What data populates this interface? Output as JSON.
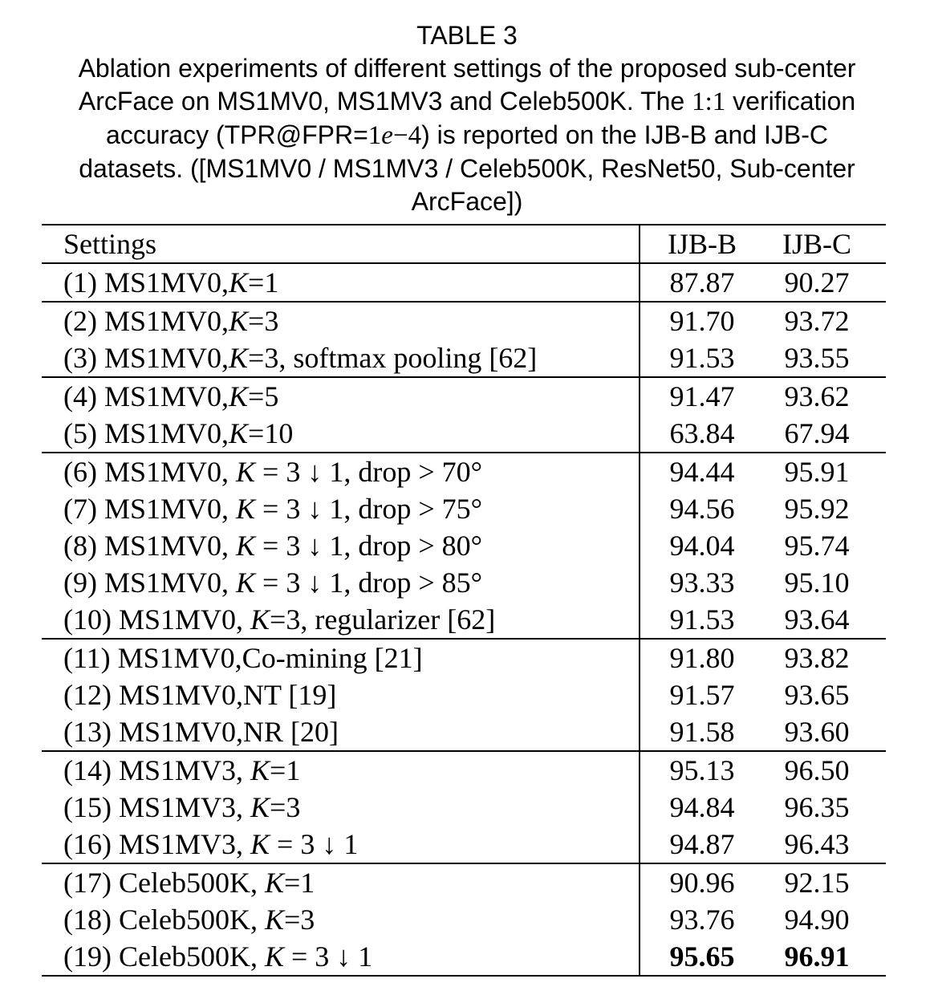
{
  "caption": {
    "title": "TABLE 3",
    "line1": "Ablation experiments of different settings of the proposed sub-center",
    "line2_pre": "ArcFace on MS1MV0, MS1MV3 and Celeb500K. The ",
    "line2_math": "1:1",
    "line2_post": " verification",
    "line3_pre": "accuracy (TPR@FPR=",
    "line3_math_a": "1",
    "line3_math_e": "e",
    "line3_math_b": "−4",
    "line3_post": ") is reported on the IJB-B and IJB-C",
    "line4": "datasets. ([MS1MV0 / MS1MV3 / Celeb500K, ResNet50, Sub-center",
    "line5": "ArcFace])"
  },
  "table": {
    "headers": [
      "Settings",
      "IJB-B",
      "IJB-C"
    ],
    "rows": [
      {
        "p1": "(1) MS1MV0,",
        "k": "K",
        "p2": "=1",
        "ijbb": "87.87",
        "ijbc": "90.27"
      },
      {
        "p1": "(2) MS1MV0,",
        "k": "K",
        "p2": "=3",
        "ijbb": "91.70",
        "ijbc": "93.72"
      },
      {
        "p1": "(3) MS1MV0,",
        "k": "K",
        "p2": "=3, softmax pooling [62]",
        "ijbb": "91.53",
        "ijbc": "93.55"
      },
      {
        "p1": "(4) MS1MV0,",
        "k": "K",
        "p2": "=5",
        "ijbb": "91.47",
        "ijbc": "93.62"
      },
      {
        "p1": "(5) MS1MV0,",
        "k": "K",
        "p2": "=10",
        "ijbb": "63.84",
        "ijbc": "67.94"
      },
      {
        "p1": "(6) MS1MV0, ",
        "k": "K",
        "p2": " = 3 ↓ 1, drop > 70°",
        "ijbb": "94.44",
        "ijbc": "95.91"
      },
      {
        "p1": "(7) MS1MV0, ",
        "k": "K",
        "p2": " = 3 ↓ 1, drop > 75°",
        "ijbb": "94.56",
        "ijbc": "95.92"
      },
      {
        "p1": "(8) MS1MV0, ",
        "k": "K",
        "p2": " = 3 ↓ 1, drop > 80°",
        "ijbb": "94.04",
        "ijbc": "95.74"
      },
      {
        "p1": "(9) MS1MV0, ",
        "k": "K",
        "p2": " = 3 ↓ 1, drop > 85°",
        "ijbb": "93.33",
        "ijbc": "95.10"
      },
      {
        "p1": "(10) MS1MV0, ",
        "k": "K",
        "p2": "=3, regularizer [62]",
        "ijbb": "91.53",
        "ijbc": "93.64"
      },
      {
        "p1": "(11) MS1MV0,Co-mining [21]",
        "k": "",
        "p2": "",
        "ijbb": "91.80",
        "ijbc": "93.82"
      },
      {
        "p1": "(12) MS1MV0,NT [19]",
        "k": "",
        "p2": "",
        "ijbb": "91.57",
        "ijbc": "93.65"
      },
      {
        "p1": "(13) MS1MV0,NR [20]",
        "k": "",
        "p2": "",
        "ijbb": "91.58",
        "ijbc": "93.60"
      },
      {
        "p1": "(14) MS1MV3, ",
        "k": "K",
        "p2": "=1",
        "ijbb": "95.13",
        "ijbc": "96.50"
      },
      {
        "p1": "(15) MS1MV3, ",
        "k": "K",
        "p2": "=3",
        "ijbb": "94.84",
        "ijbc": "96.35"
      },
      {
        "p1": "(16) MS1MV3, ",
        "k": "K",
        "p2": " = 3 ↓ 1",
        "ijbb": "94.87",
        "ijbc": "96.43"
      },
      {
        "p1": "(17) Celeb500K, ",
        "k": "K",
        "p2": "=1",
        "ijbb": "90.96",
        "ijbc": "92.15"
      },
      {
        "p1": "(18) Celeb500K, ",
        "k": "K",
        "p2": "=3",
        "ijbb": "93.76",
        "ijbc": "94.90"
      },
      {
        "p1": "(19) Celeb500K, ",
        "k": "K",
        "p2": " = 3 ↓ 1",
        "ijbb": "95.65",
        "ijbc": "96.91"
      }
    ]
  }
}
